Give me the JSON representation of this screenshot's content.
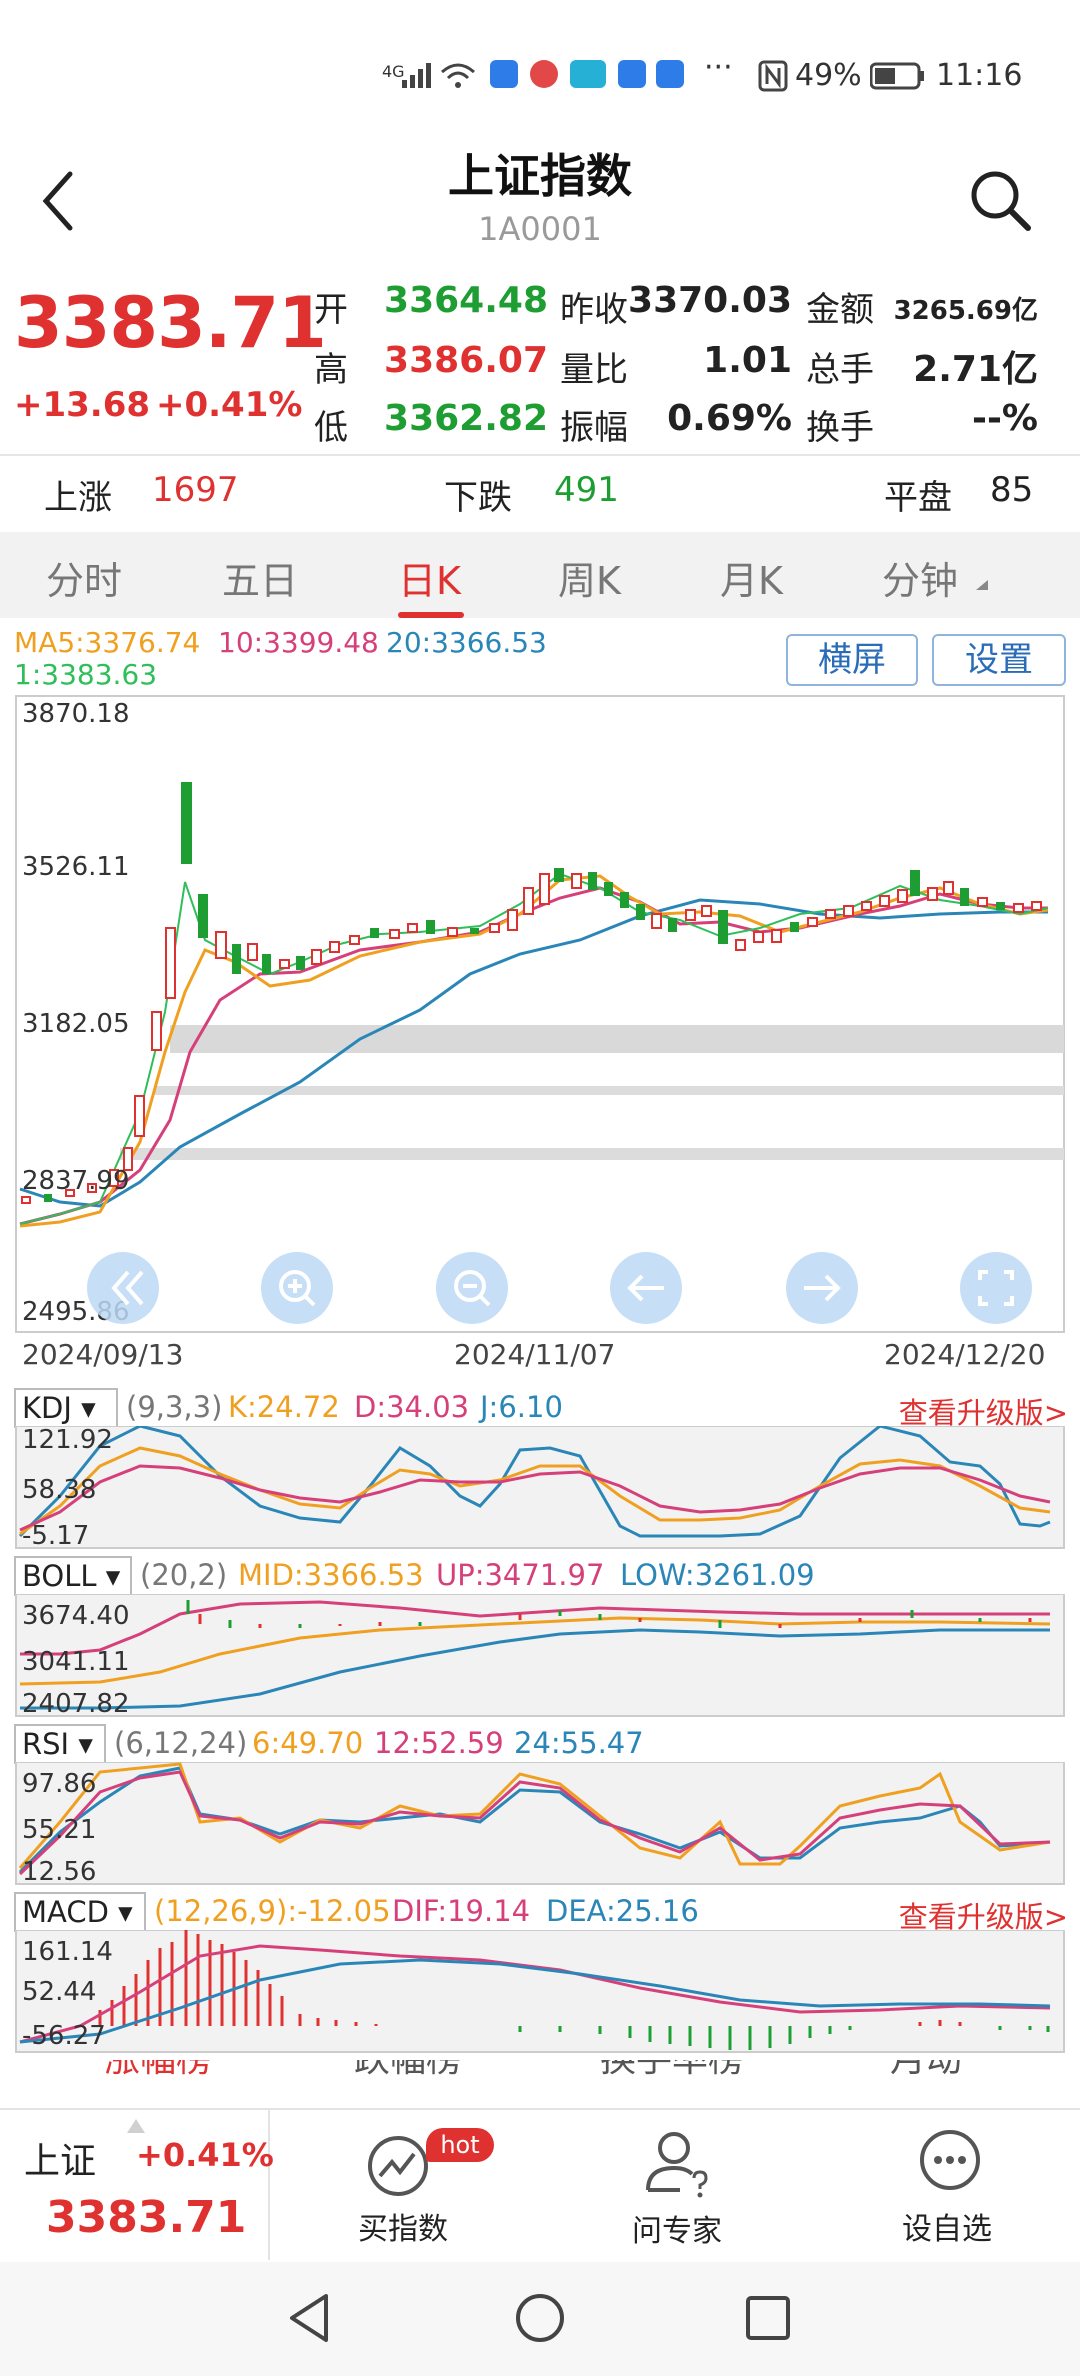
{
  "status_bar": {
    "network": "4G",
    "battery": "49%",
    "time": "11:16"
  },
  "header": {
    "title": "上证指数",
    "code": "1A0001"
  },
  "quote": {
    "price": "3383.71",
    "change": "+13.68",
    "change_pct": "+0.41%",
    "rows": [
      [
        {
          "label": "开",
          "value": "3364.48"
        },
        {
          "label": "昨收",
          "value": "3370.03"
        },
        {
          "label": "金额",
          "value": "3265.69亿"
        }
      ],
      [
        {
          "label": "高",
          "value": "3386.07"
        },
        {
          "label": "量比",
          "value": "1.01"
        },
        {
          "label": "总手",
          "value": "2.71亿"
        }
      ],
      [
        {
          "label": "低",
          "value": "3362.82"
        },
        {
          "label": "振幅",
          "value": "0.69%"
        },
        {
          "label": "换手",
          "value": "--%"
        }
      ]
    ]
  },
  "breadth": {
    "up_label": "上涨",
    "up": "1697",
    "down_label": "下跌",
    "down": "491",
    "flat_label": "平盘",
    "flat": "85"
  },
  "tabs": [
    "分时",
    "五日",
    "日K",
    "周K",
    "月K",
    "分钟"
  ],
  "active_tab": "日K",
  "ma_legend": {
    "ma5": "MA5:3376.74",
    "ma10": "10:3399.48",
    "ma20": "20:3366.53",
    "ma1": "1:3383.63"
  },
  "buttons": {
    "landscape": "横屏",
    "settings": "设置"
  },
  "main_chart": {
    "y_ticks": [
      "3870.18",
      "3526.11",
      "3182.05",
      "2837.99",
      "2495.86"
    ],
    "x_dates": [
      "2024/09/13",
      "2024/11/07",
      "2024/12/20"
    ]
  },
  "kdj": {
    "name": "KDJ",
    "params": "(9,3,3)",
    "k": "K:24.72",
    "d": "D:34.03",
    "j": "J:6.10",
    "upgrade": "查看升级版>",
    "y_ticks": [
      "121.92",
      "58.38",
      "-5.17"
    ]
  },
  "boll": {
    "name": "BOLL",
    "params": "(20,2)",
    "mid": "MID:3366.53",
    "up": "UP:3471.97",
    "low": "LOW:3261.09",
    "y_ticks": [
      "3674.40",
      "3041.11",
      "2407.82"
    ]
  },
  "rsi": {
    "name": "RSI",
    "params": "(6,12,24)",
    "r6": "6:49.70",
    "r12": "12:52.59",
    "r24": "24:55.47",
    "y_ticks": [
      "97.86",
      "55.21",
      "12.56"
    ]
  },
  "macd": {
    "name": "MACD",
    "params": "(12,26,9):-12.05",
    "dif": "DIF:19.14",
    "dea": "DEA:25.16",
    "upgrade": "查看升级版>",
    "y_ticks": [
      "161.14",
      "52.44",
      "-56.27"
    ]
  },
  "peek_tabs": [
    "涨幅榜",
    "跌幅榜",
    "换手率榜",
    "月动"
  ],
  "bottom": {
    "name": "上证",
    "pct": "+0.41%",
    "price": "3383.71",
    "buy_label": "买指数",
    "hot_badge": "hot",
    "ask_label": "问专家",
    "watch_label": "设自选"
  },
  "colors": {
    "up_red": "#e03131",
    "down_green": "#1e9d33",
    "ma5": "#f0a020",
    "ma10": "#d6407a",
    "ma20": "#2b86b8"
  }
}
